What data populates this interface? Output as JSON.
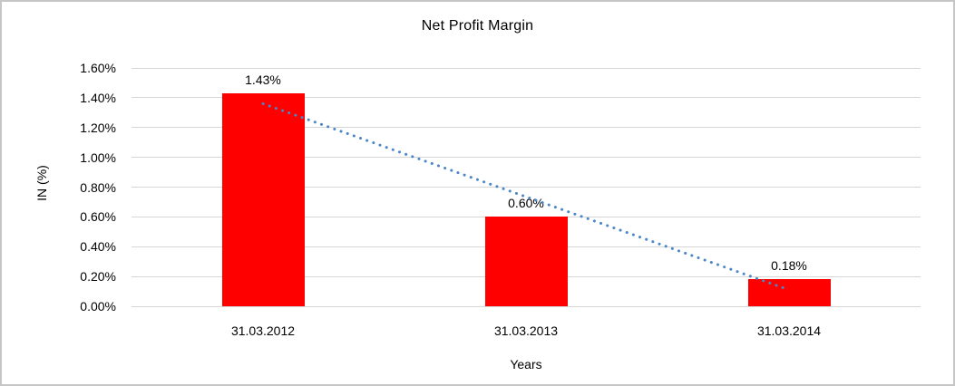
{
  "chart_data": {
    "type": "bar",
    "title": "Net Profit Margin",
    "xlabel": "Years",
    "ylabel": "IN (%)",
    "categories": [
      "31.03.2012",
      "31.03.2013",
      "31.03.2014"
    ],
    "values": [
      1.43,
      0.6,
      0.18
    ],
    "data_labels": [
      "1.43%",
      "0.60%",
      "0.18%"
    ],
    "ylim": [
      0,
      1.6
    ],
    "ytick_step": 0.2,
    "ytick_labels": [
      "0.00%",
      "0.20%",
      "0.40%",
      "0.60%",
      "0.80%",
      "1.00%",
      "1.20%",
      "1.40%",
      "1.60%"
    ],
    "grid": true,
    "legend": "none",
    "bar_color": "#ff0000",
    "gridline_color": "#d6d6d6",
    "trendline": {
      "type": "linear",
      "style": "dotted",
      "color": "#4a86c8",
      "start_value": 1.36,
      "end_value": 0.11
    }
  }
}
